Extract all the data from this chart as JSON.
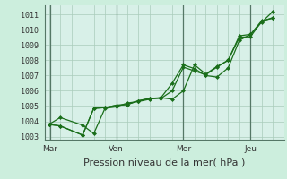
{
  "background_color": "#cceedd",
  "plot_bg_color": "#d8f0e8",
  "grid_color": "#aaccbb",
  "line_color": "#1a6e1a",
  "marker_color": "#1a6e1a",
  "ylabel_values": [
    1003,
    1004,
    1005,
    1006,
    1007,
    1008,
    1009,
    1010,
    1011
  ],
  "ylim": [
    1002.8,
    1011.6
  ],
  "xlabel": "Pression niveau de la mer( hPa )",
  "xtick_labels": [
    "Mar",
    "Ven",
    "Mer",
    "Jeu"
  ],
  "xtick_positions": [
    0.05,
    3.0,
    6.0,
    9.0
  ],
  "series": [
    [
      0.0,
      1003.8,
      0.5,
      1004.25,
      1.5,
      1003.75,
      2.0,
      1003.2,
      2.5,
      1004.85,
      3.0,
      1004.95,
      3.5,
      1005.2,
      4.0,
      1005.3,
      4.5,
      1005.45,
      5.0,
      1005.55,
      5.5,
      1006.5,
      6.0,
      1007.7,
      6.5,
      1007.45,
      7.0,
      1007.0,
      7.5,
      1006.9,
      8.0,
      1007.5,
      8.5,
      1009.3,
      9.0,
      1009.7,
      9.5,
      1010.5,
      10.0,
      1011.2
    ],
    [
      0.0,
      1003.8,
      0.5,
      1003.7,
      1.5,
      1003.1,
      2.0,
      1004.85,
      2.5,
      1004.9,
      3.0,
      1005.05,
      3.5,
      1005.1,
      4.0,
      1005.35,
      4.5,
      1005.5,
      5.0,
      1005.5,
      5.5,
      1006.0,
      6.0,
      1007.55,
      6.5,
      1007.3,
      7.0,
      1007.05,
      7.5,
      1007.55,
      8.0,
      1008.0,
      8.5,
      1009.5,
      9.0,
      1009.55,
      9.5,
      1010.55,
      10.0,
      1010.8
    ],
    [
      0.0,
      1003.8,
      0.5,
      1003.7,
      1.5,
      1003.1,
      2.0,
      1004.85,
      2.5,
      1004.9,
      3.0,
      1005.05,
      3.5,
      1005.1,
      4.0,
      1005.35,
      4.5,
      1005.5,
      5.0,
      1005.55,
      5.5,
      1005.45,
      6.0,
      1006.0,
      6.5,
      1007.7,
      7.0,
      1007.1,
      7.5,
      1007.6,
      8.0,
      1008.0,
      8.5,
      1009.6,
      9.0,
      1009.7,
      9.5,
      1010.6,
      10.0,
      1010.75
    ]
  ],
  "vline_positions": [
    0.05,
    3.0,
    6.0,
    9.0
  ],
  "vline_color": "#557766",
  "spine_color": "#557766",
  "xlabel_fontsize": 8.0,
  "ytick_fontsize": 6.0,
  "xtick_fontsize": 6.5
}
